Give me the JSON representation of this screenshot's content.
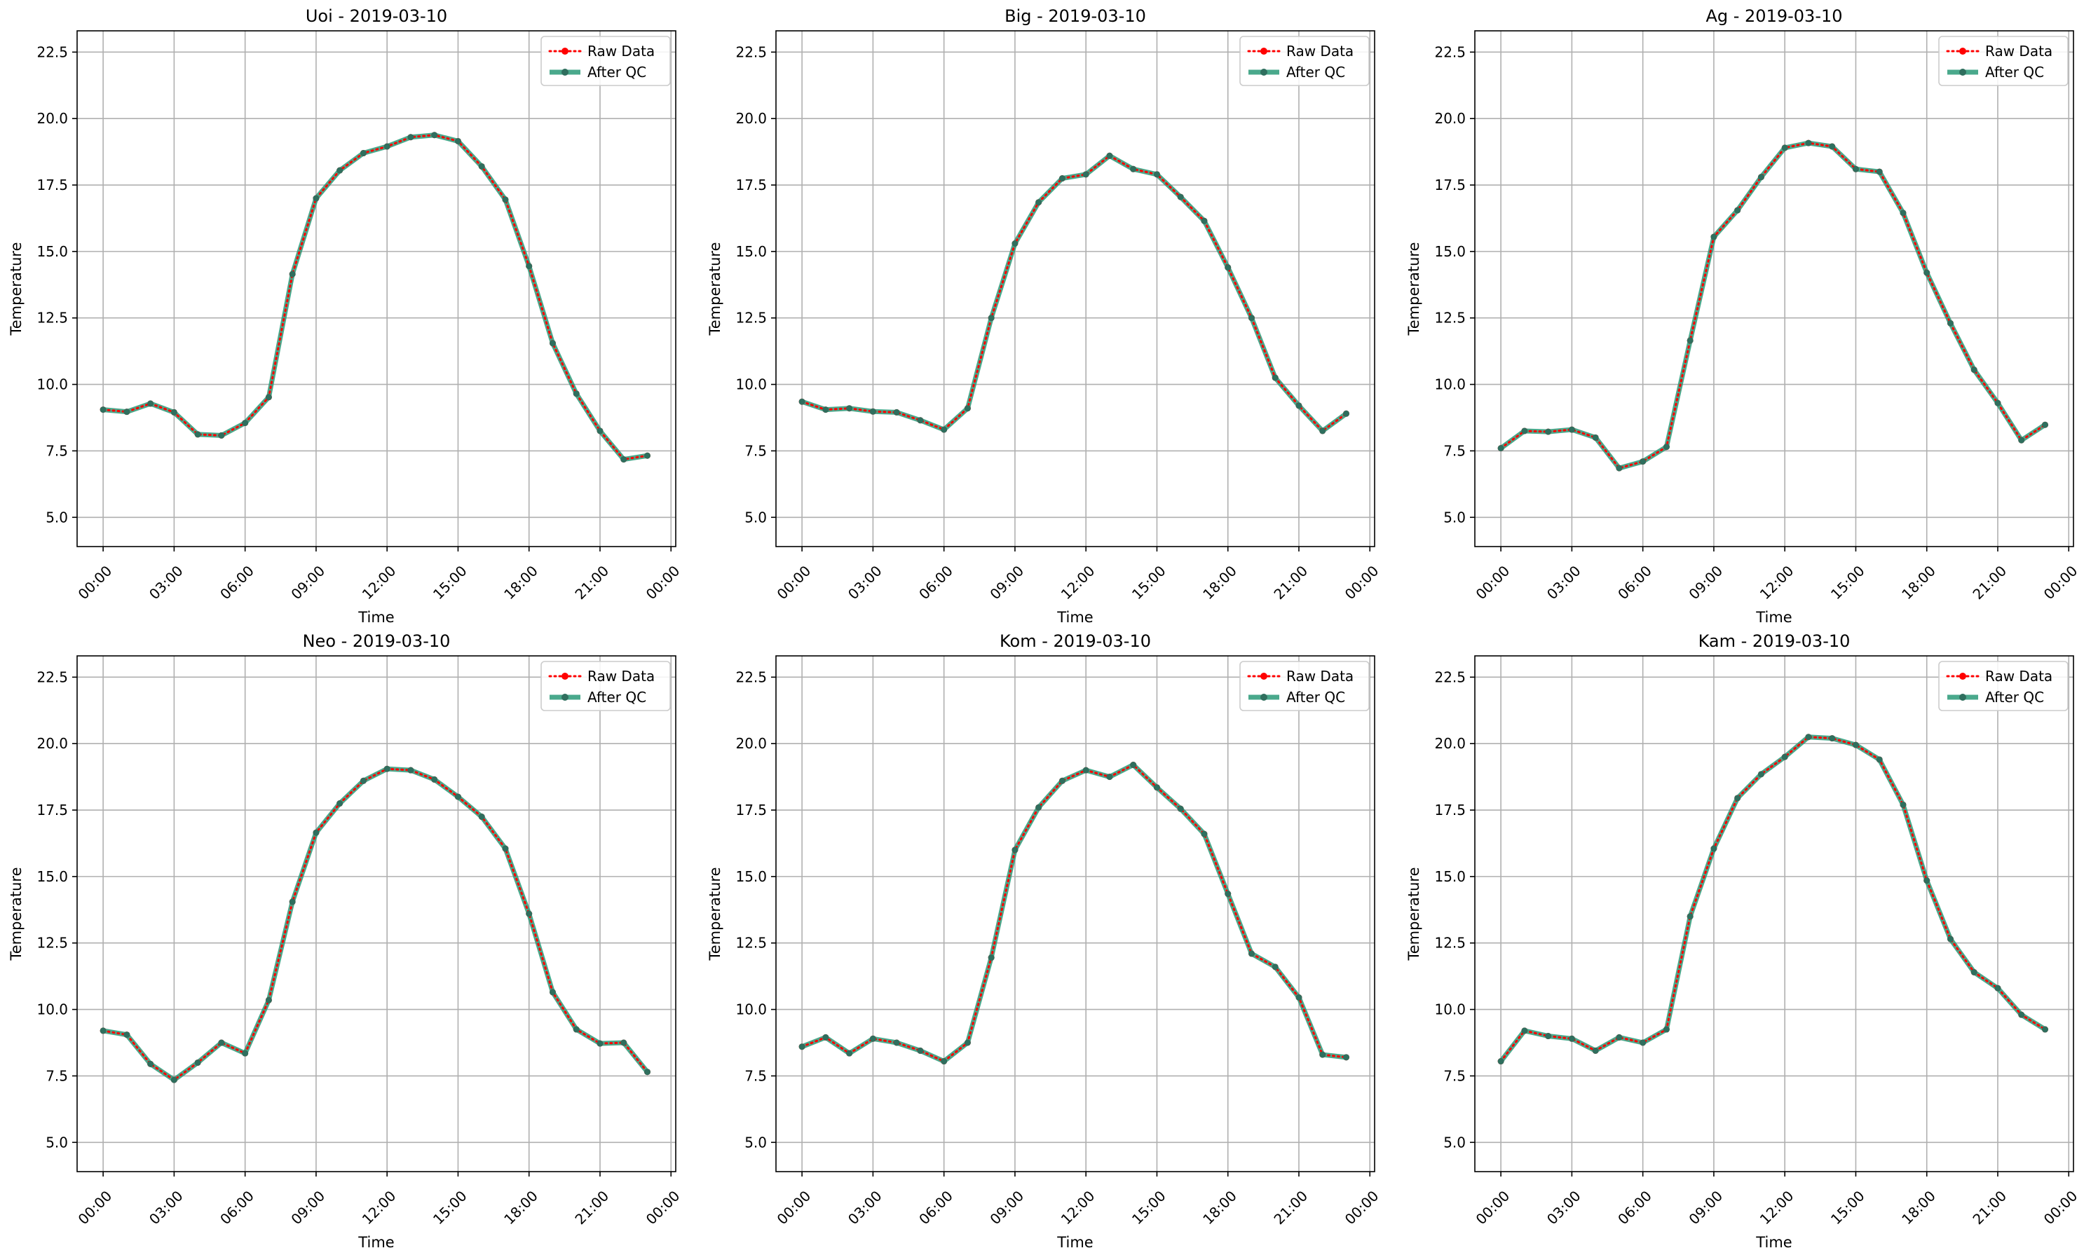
{
  "figure": {
    "x_tick_labels": [
      "00:00",
      "03:00",
      "06:00",
      "09:00",
      "12:00",
      "15:00",
      "18:00",
      "21:00",
      "00:00"
    ],
    "y_tick_labels": [
      "5.0",
      "7.5",
      "10.0",
      "12.5",
      "15.0",
      "17.5",
      "20.0",
      "22.5"
    ],
    "colors": {
      "raw": "#ff0000",
      "qc": "#2a9a78",
      "qc_marker": "#2f6f5e",
      "grid": "#b0b0b0"
    },
    "legend_placement": "upper right"
  },
  "chart_data": [
    {
      "type": "line",
      "title": "Uoi - 2019-03-10",
      "xlabel": "Time",
      "ylabel": "Temperature",
      "xlim": [
        -1.1,
        24.2
      ],
      "ylim": [
        3.9,
        23.3
      ],
      "x_unit": "hour of day (2019-03-10 00:00 .. 2019-03-11 00:00)",
      "x": [
        0,
        1,
        2,
        3,
        4,
        5,
        6,
        7,
        8,
        9,
        10,
        11,
        12,
        13,
        14,
        15,
        16,
        17,
        18,
        19,
        20,
        21,
        22,
        23
      ],
      "series": [
        {
          "name": "Raw Data",
          "style": "dotted",
          "values": [
            9.05,
            8.97,
            9.28,
            8.95,
            8.12,
            8.08,
            8.55,
            9.52,
            14.15,
            17.0,
            18.05,
            18.7,
            18.95,
            19.3,
            19.38,
            19.15,
            18.2,
            16.95,
            14.45,
            11.55,
            9.65,
            8.25,
            7.18,
            7.32
          ]
        },
        {
          "name": "After QC",
          "style": "solid",
          "values": [
            9.05,
            8.97,
            9.28,
            8.95,
            8.12,
            8.08,
            8.55,
            9.52,
            14.15,
            17.0,
            18.05,
            18.7,
            18.95,
            19.3,
            19.38,
            19.15,
            18.2,
            16.95,
            14.45,
            11.55,
            9.65,
            8.25,
            7.18,
            7.32
          ]
        }
      ],
      "grid": true,
      "legend": "upper right"
    },
    {
      "type": "line",
      "title": "Big - 2019-03-10",
      "xlabel": "Time",
      "ylabel": "Temperature",
      "xlim": [
        -1.1,
        24.2
      ],
      "ylim": [
        3.9,
        23.3
      ],
      "x_unit": "hour of day (2019-03-10 00:00 .. 2019-03-11 00:00)",
      "x": [
        0,
        1,
        2,
        3,
        4,
        5,
        6,
        7,
        8,
        9,
        10,
        11,
        12,
        13,
        14,
        15,
        16,
        17,
        18,
        19,
        20,
        21,
        22,
        23
      ],
      "series": [
        {
          "name": "Raw Data",
          "style": "dotted",
          "values": [
            9.35,
            9.05,
            9.1,
            8.98,
            8.95,
            8.65,
            8.3,
            9.1,
            12.5,
            15.3,
            16.85,
            17.75,
            17.9,
            18.6,
            18.1,
            17.9,
            17.05,
            16.15,
            14.4,
            12.5,
            10.25,
            9.2,
            8.25,
            8.9
          ]
        },
        {
          "name": "After QC",
          "style": "solid",
          "values": [
            9.35,
            9.05,
            9.1,
            8.98,
            8.95,
            8.65,
            8.3,
            9.1,
            12.5,
            15.3,
            16.85,
            17.75,
            17.9,
            18.6,
            18.1,
            17.9,
            17.05,
            16.15,
            14.4,
            12.5,
            10.25,
            9.2,
            8.25,
            8.9
          ]
        }
      ],
      "grid": true,
      "legend": "upper right"
    },
    {
      "type": "line",
      "title": "Ag - 2019-03-10",
      "xlabel": "Time",
      "ylabel": "Temperature",
      "xlim": [
        -1.1,
        24.2
      ],
      "ylim": [
        3.9,
        23.3
      ],
      "x_unit": "hour of day (2019-03-10 00:00 .. 2019-03-11 00:00)",
      "x": [
        0,
        1,
        2,
        3,
        4,
        5,
        6,
        7,
        8,
        9,
        10,
        11,
        12,
        13,
        14,
        15,
        16,
        17,
        18,
        19,
        20,
        21,
        22,
        23
      ],
      "series": [
        {
          "name": "Raw Data",
          "style": "dotted",
          "values": [
            7.6,
            8.25,
            8.22,
            8.3,
            8.0,
            6.85,
            7.1,
            7.65,
            11.65,
            15.55,
            16.55,
            17.8,
            18.9,
            19.08,
            18.95,
            18.1,
            18.0,
            16.45,
            14.2,
            12.3,
            10.55,
            9.3,
            7.9,
            8.48
          ]
        },
        {
          "name": "After QC",
          "style": "solid",
          "values": [
            7.6,
            8.25,
            8.22,
            8.3,
            8.0,
            6.85,
            7.1,
            7.65,
            11.65,
            15.55,
            16.55,
            17.8,
            18.9,
            19.08,
            18.95,
            18.1,
            18.0,
            16.45,
            14.2,
            12.3,
            10.55,
            9.3,
            7.9,
            8.48
          ]
        }
      ],
      "grid": true,
      "legend": "upper right"
    },
    {
      "type": "line",
      "title": "Neo - 2019-03-10",
      "xlabel": "Time",
      "ylabel": "Temperature",
      "xlim": [
        -1.1,
        24.2
      ],
      "ylim": [
        3.9,
        23.3
      ],
      "x_unit": "hour of day (2019-03-10 00:00 .. 2019-03-11 00:00)",
      "x": [
        0,
        1,
        2,
        3,
        4,
        5,
        6,
        7,
        8,
        9,
        10,
        11,
        12,
        13,
        14,
        15,
        16,
        17,
        18,
        19,
        20,
        21,
        22,
        23
      ],
      "series": [
        {
          "name": "Raw Data",
          "style": "dotted",
          "values": [
            9.2,
            9.05,
            7.95,
            7.35,
            8.0,
            8.75,
            8.35,
            10.35,
            14.05,
            16.65,
            17.75,
            18.6,
            19.05,
            19.0,
            18.65,
            18.0,
            17.25,
            16.05,
            13.6,
            10.65,
            9.25,
            8.72,
            8.75,
            7.65
          ]
        },
        {
          "name": "After QC",
          "style": "solid",
          "values": [
            9.2,
            9.05,
            7.95,
            7.35,
            8.0,
            8.75,
            8.35,
            10.35,
            14.05,
            16.65,
            17.75,
            18.6,
            19.05,
            19.0,
            18.65,
            18.0,
            17.25,
            16.05,
            13.6,
            10.65,
            9.25,
            8.72,
            8.75,
            7.65
          ]
        }
      ],
      "grid": true,
      "legend": "upper right"
    },
    {
      "type": "line",
      "title": "Kom - 2019-03-10",
      "xlabel": "Time",
      "ylabel": "Temperature",
      "xlim": [
        -1.1,
        24.2
      ],
      "ylim": [
        3.9,
        23.3
      ],
      "x_unit": "hour of day (2019-03-10 00:00 .. 2019-03-11 00:00)",
      "x": [
        0,
        1,
        2,
        3,
        4,
        5,
        6,
        7,
        8,
        9,
        10,
        11,
        12,
        13,
        14,
        15,
        16,
        17,
        18,
        19,
        20,
        21,
        22,
        23
      ],
      "series": [
        {
          "name": "Raw Data",
          "style": "dotted",
          "values": [
            8.6,
            8.95,
            8.35,
            8.9,
            8.75,
            8.45,
            8.05,
            8.75,
            11.95,
            16.0,
            17.6,
            18.6,
            19.0,
            18.75,
            19.2,
            18.35,
            17.55,
            16.6,
            14.35,
            12.1,
            11.6,
            10.45,
            8.3,
            8.2
          ]
        },
        {
          "name": "After QC",
          "style": "solid",
          "values": [
            8.6,
            8.95,
            8.35,
            8.9,
            8.75,
            8.45,
            8.05,
            8.75,
            11.95,
            16.0,
            17.6,
            18.6,
            19.0,
            18.75,
            19.2,
            18.35,
            17.55,
            16.6,
            14.35,
            12.1,
            11.6,
            10.45,
            8.3,
            8.2
          ]
        }
      ],
      "grid": true,
      "legend": "upper right"
    },
    {
      "type": "line",
      "title": "Kam - 2019-03-10",
      "xlabel": "Time",
      "ylabel": "Temperature",
      "xlim": [
        -1.1,
        24.2
      ],
      "ylim": [
        3.9,
        23.3
      ],
      "x_unit": "hour of day (2019-03-10 00:00 .. 2019-03-11 00:00)",
      "x": [
        0,
        1,
        2,
        3,
        4,
        5,
        6,
        7,
        8,
        9,
        10,
        11,
        12,
        13,
        14,
        15,
        16,
        17,
        18,
        19,
        20,
        21,
        22,
        23
      ],
      "series": [
        {
          "name": "Raw Data",
          "style": "dotted",
          "values": [
            8.05,
            9.2,
            9.0,
            8.9,
            8.45,
            8.95,
            8.75,
            9.25,
            13.5,
            16.05,
            17.95,
            18.85,
            19.5,
            20.25,
            20.2,
            19.95,
            19.4,
            17.7,
            14.85,
            12.65,
            11.4,
            10.8,
            9.8,
            9.25
          ]
        },
        {
          "name": "After QC",
          "style": "solid",
          "values": [
            8.05,
            9.2,
            9.0,
            8.9,
            8.45,
            8.95,
            8.75,
            9.25,
            13.5,
            16.05,
            17.95,
            18.85,
            19.5,
            20.25,
            20.2,
            19.95,
            19.4,
            17.7,
            14.85,
            12.65,
            11.4,
            10.8,
            9.8,
            9.25
          ]
        }
      ],
      "grid": true,
      "legend": "upper right"
    }
  ]
}
